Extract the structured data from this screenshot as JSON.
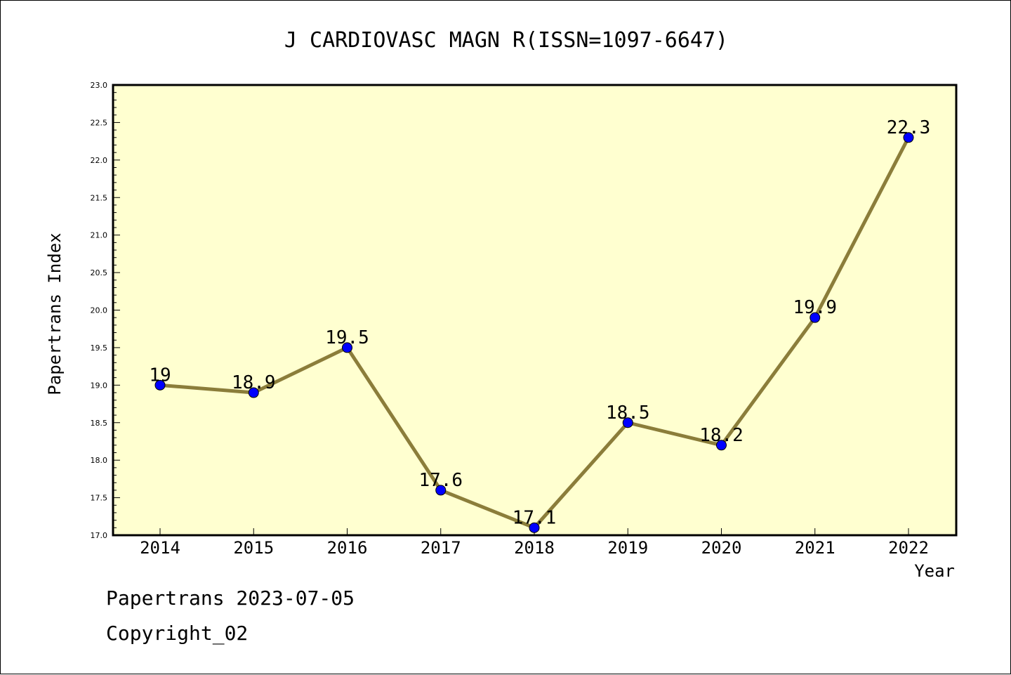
{
  "chart_data": {
    "type": "line",
    "title": "J CARDIOVASC MAGN R(ISSN=1097-6647)",
    "xlabel": "Year",
    "ylabel": "Papertrans Index",
    "x": [
      "2014",
      "2015",
      "2016",
      "2017",
      "2018",
      "2019",
      "2020",
      "2021",
      "2022"
    ],
    "values": [
      19,
      18.9,
      19.5,
      17.6,
      17.1,
      18.5,
      18.2,
      19.9,
      22.3
    ],
    "data_labels": [
      "19",
      "18.9",
      "19.5",
      "17.6",
      "17.1",
      "18.5",
      "18.2",
      "19.9",
      "22.3"
    ],
    "ylim": [
      17.0,
      23.0
    ],
    "yticks": [
      "17.0",
      "17.5",
      "18.0",
      "18.5",
      "19.0",
      "19.5",
      "20.0",
      "20.5",
      "21.0",
      "21.5",
      "22.0",
      "22.5",
      "23.0"
    ],
    "grid": false,
    "colors": {
      "plot_background": "#ffffd0",
      "line": "#8b7d3a",
      "marker": "#0000ff"
    }
  },
  "footer": {
    "line1": "Papertrans 2023-07-05",
    "line2": "Copyright_02"
  }
}
